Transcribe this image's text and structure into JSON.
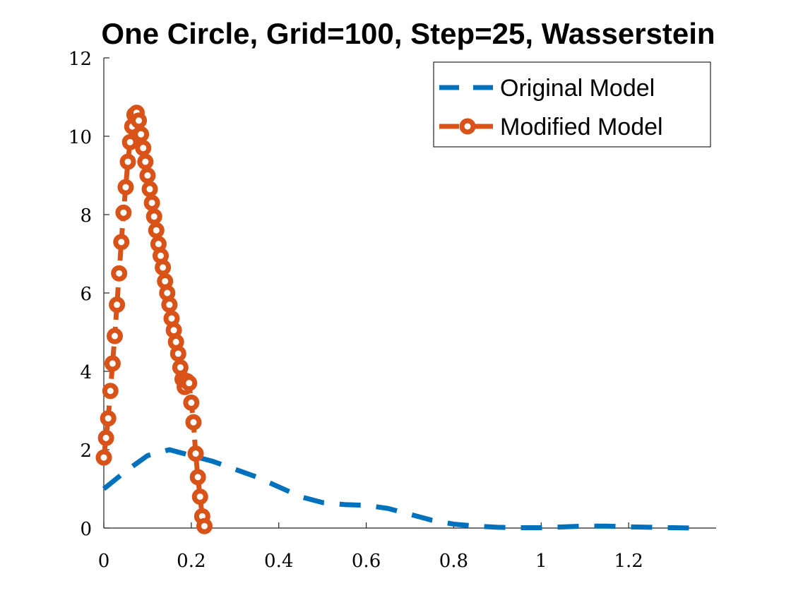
{
  "chart_data": {
    "type": "line",
    "title": "One Circle, Grid=100, Step=25, Wasserstein",
    "xlabel": "",
    "ylabel": "",
    "xlim": [
      0,
      1.4
    ],
    "ylim": [
      0,
      12
    ],
    "x_ticks": [
      "0",
      "0.2",
      "0.4",
      "0.6",
      "0.8",
      "1",
      "1.2"
    ],
    "y_ticks": [
      "0",
      "2",
      "4",
      "6",
      "8",
      "10",
      "12"
    ],
    "grid": false,
    "legend_placement": "top-right",
    "series": [
      {
        "name": "Original Model",
        "color": "#0072BD",
        "line_style": "dashed",
        "marker": "none",
        "x": [
          0,
          0.05,
          0.1,
          0.15,
          0.2,
          0.25,
          0.3,
          0.35,
          0.4,
          0.45,
          0.5,
          0.55,
          0.6,
          0.65,
          0.7,
          0.75,
          0.8,
          0.85,
          0.9,
          0.95,
          1.0,
          1.05,
          1.1,
          1.15,
          1.2,
          1.25,
          1.3,
          1.35
        ],
        "y": [
          1.0,
          1.45,
          1.85,
          2.0,
          1.85,
          1.7,
          1.5,
          1.3,
          1.05,
          0.8,
          0.65,
          0.6,
          0.58,
          0.5,
          0.35,
          0.2,
          0.1,
          0.05,
          0.02,
          0.01,
          0.01,
          0.03,
          0.05,
          0.05,
          0.03,
          0.02,
          0.01,
          0.0
        ]
      },
      {
        "name": "Modified Model",
        "color": "#D95319",
        "line_style": "dashed",
        "marker": "circle",
        "x": [
          0.0,
          0.005,
          0.01,
          0.015,
          0.02,
          0.025,
          0.03,
          0.035,
          0.04,
          0.045,
          0.05,
          0.055,
          0.06,
          0.065,
          0.07,
          0.075,
          0.08,
          0.085,
          0.09,
          0.095,
          0.1,
          0.105,
          0.11,
          0.115,
          0.12,
          0.125,
          0.13,
          0.135,
          0.14,
          0.145,
          0.15,
          0.155,
          0.16,
          0.165,
          0.17,
          0.175,
          0.18,
          0.185,
          0.19,
          0.195,
          0.2,
          0.205,
          0.21,
          0.215,
          0.22,
          0.225,
          0.23
        ],
        "y": [
          1.8,
          2.3,
          2.8,
          3.5,
          4.2,
          4.9,
          5.7,
          6.5,
          7.3,
          8.05,
          8.7,
          9.35,
          9.85,
          10.25,
          10.55,
          10.6,
          10.4,
          10.05,
          9.7,
          9.35,
          9.0,
          8.65,
          8.3,
          7.95,
          7.6,
          7.25,
          6.95,
          6.65,
          6.3,
          6.0,
          5.7,
          5.35,
          5.05,
          4.75,
          4.45,
          4.1,
          3.8,
          3.6,
          3.75,
          3.7,
          3.2,
          2.7,
          1.9,
          1.3,
          0.8,
          0.3,
          0.05
        ],
        "x_note": "",
        "y_note": ""
      }
    ]
  }
}
